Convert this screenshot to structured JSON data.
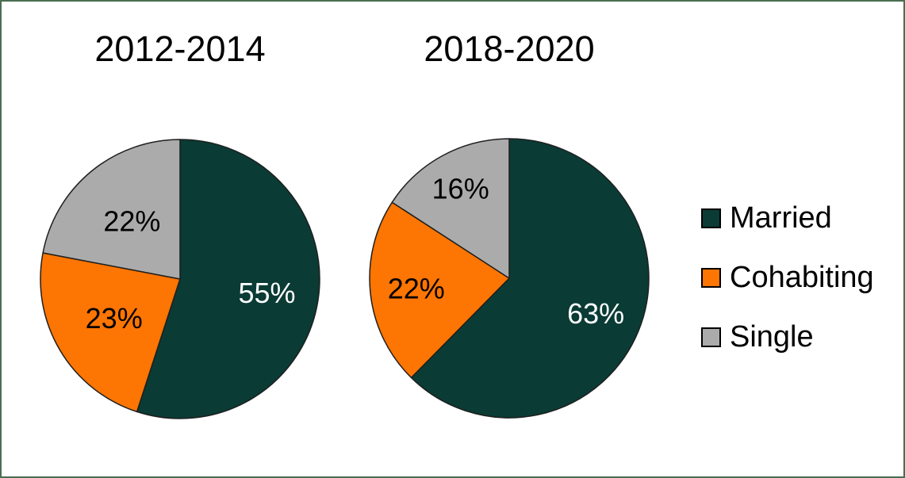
{
  "frame": {
    "background": "#ffffff",
    "border_color": "#4a6e52"
  },
  "chart_data": [
    {
      "type": "pie",
      "title": "2012-2014",
      "categories": [
        "Married",
        "Cohabiting",
        "Single"
      ],
      "values": [
        55,
        23,
        22
      ],
      "labels": [
        "55%",
        "23%",
        "22%"
      ],
      "label_colors": [
        "#ffffff",
        "#000000",
        "#000000"
      ],
      "label_radius": [
        0.63,
        0.55,
        0.54
      ],
      "start_angle_deg": 0,
      "direction": "clockwise"
    },
    {
      "type": "pie",
      "title": "2018-2020",
      "categories": [
        "Married",
        "Cohabiting",
        "Single"
      ],
      "values": [
        63,
        22,
        16
      ],
      "labels": [
        "63%",
        "22%",
        "16%"
      ],
      "label_colors": [
        "#ffffff",
        "#000000",
        "#000000"
      ],
      "label_radius": [
        0.67,
        0.67,
        0.73
      ],
      "start_angle_deg": 0,
      "direction": "clockwise"
    }
  ],
  "colors": {
    "series": [
      "#0a3b35",
      "#fd7502",
      "#ababab"
    ],
    "slice_outline": "#1f1f1f",
    "text": "#000000"
  },
  "legend": {
    "position": "right",
    "items": [
      {
        "label": "Married",
        "color": "#0a3b35"
      },
      {
        "label": "Cohabiting",
        "color": "#fd7502"
      },
      {
        "label": "Single",
        "color": "#ababab"
      }
    ]
  }
}
